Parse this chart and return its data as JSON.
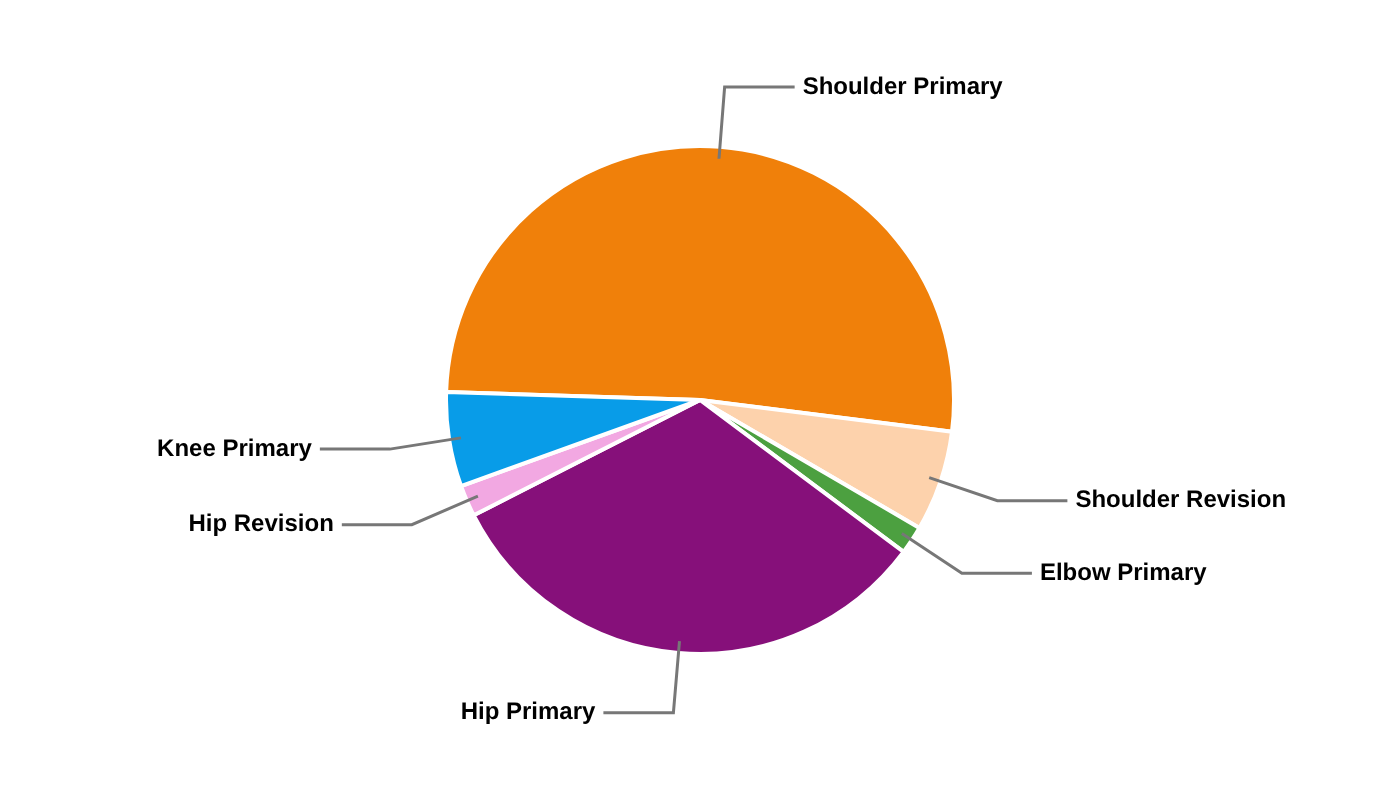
{
  "chart_data": {
    "type": "pie",
    "categories": [
      "Shoulder Primary",
      "Shoulder Revision",
      "Elbow Primary",
      "Hip Primary",
      "Hip Revision",
      "Knee Primary"
    ],
    "values": [
      51.5,
      6.4,
      1.8,
      32.3,
      2.0,
      6.0
    ],
    "colors": [
      "#f0800a",
      "#fdd2ac",
      "#4ca040",
      "#86107a",
      "#f2a8e2",
      "#089ce8"
    ],
    "legend": false
  }
}
